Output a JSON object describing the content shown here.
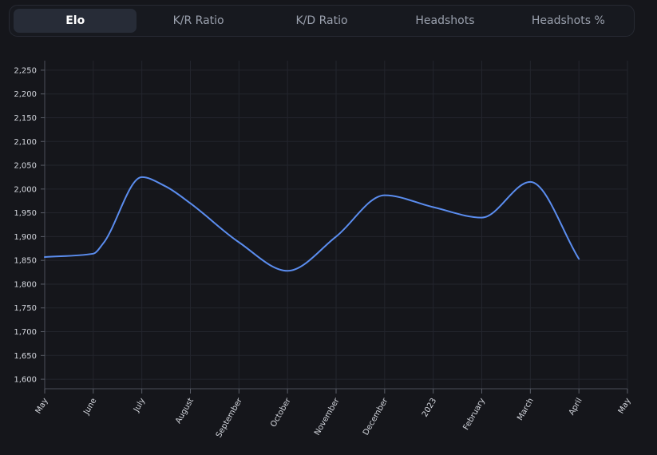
{
  "tabs": [
    {
      "label": "Elo",
      "active": true
    },
    {
      "label": "K/R Ratio",
      "active": false
    },
    {
      "label": "K/D Ratio",
      "active": false
    },
    {
      "label": "Headshots",
      "active": false
    },
    {
      "label": "Headshots %",
      "active": false
    }
  ],
  "chart_data": {
    "type": "line",
    "title": "",
    "xlabel": "",
    "ylabel": "",
    "x_ticks": [
      "May",
      "June",
      "July",
      "August",
      "September",
      "October",
      "November",
      "December",
      "2023",
      "February",
      "March",
      "April",
      "May"
    ],
    "x_range": [
      0,
      12
    ],
    "ylim": [
      1580,
      2270
    ],
    "y_ticks": [
      1600,
      1650,
      1700,
      1750,
      1800,
      1850,
      1900,
      1950,
      2000,
      2050,
      2100,
      2150,
      2200,
      2250
    ],
    "grid": true,
    "line_color": "#5b8def",
    "series": [
      {
        "points": [
          [
            0,
            1857
          ],
          [
            1,
            1864
          ],
          [
            1.2,
            1885
          ],
          [
            2,
            2025
          ],
          [
            2.5,
            2005
          ],
          [
            3,
            1970
          ],
          [
            4,
            1888
          ],
          [
            5,
            1828
          ],
          [
            6,
            1900
          ],
          [
            7,
            1987
          ],
          [
            8,
            1962
          ],
          [
            9,
            1940
          ],
          [
            10,
            2015
          ],
          [
            11,
            1853
          ]
        ]
      }
    ]
  }
}
